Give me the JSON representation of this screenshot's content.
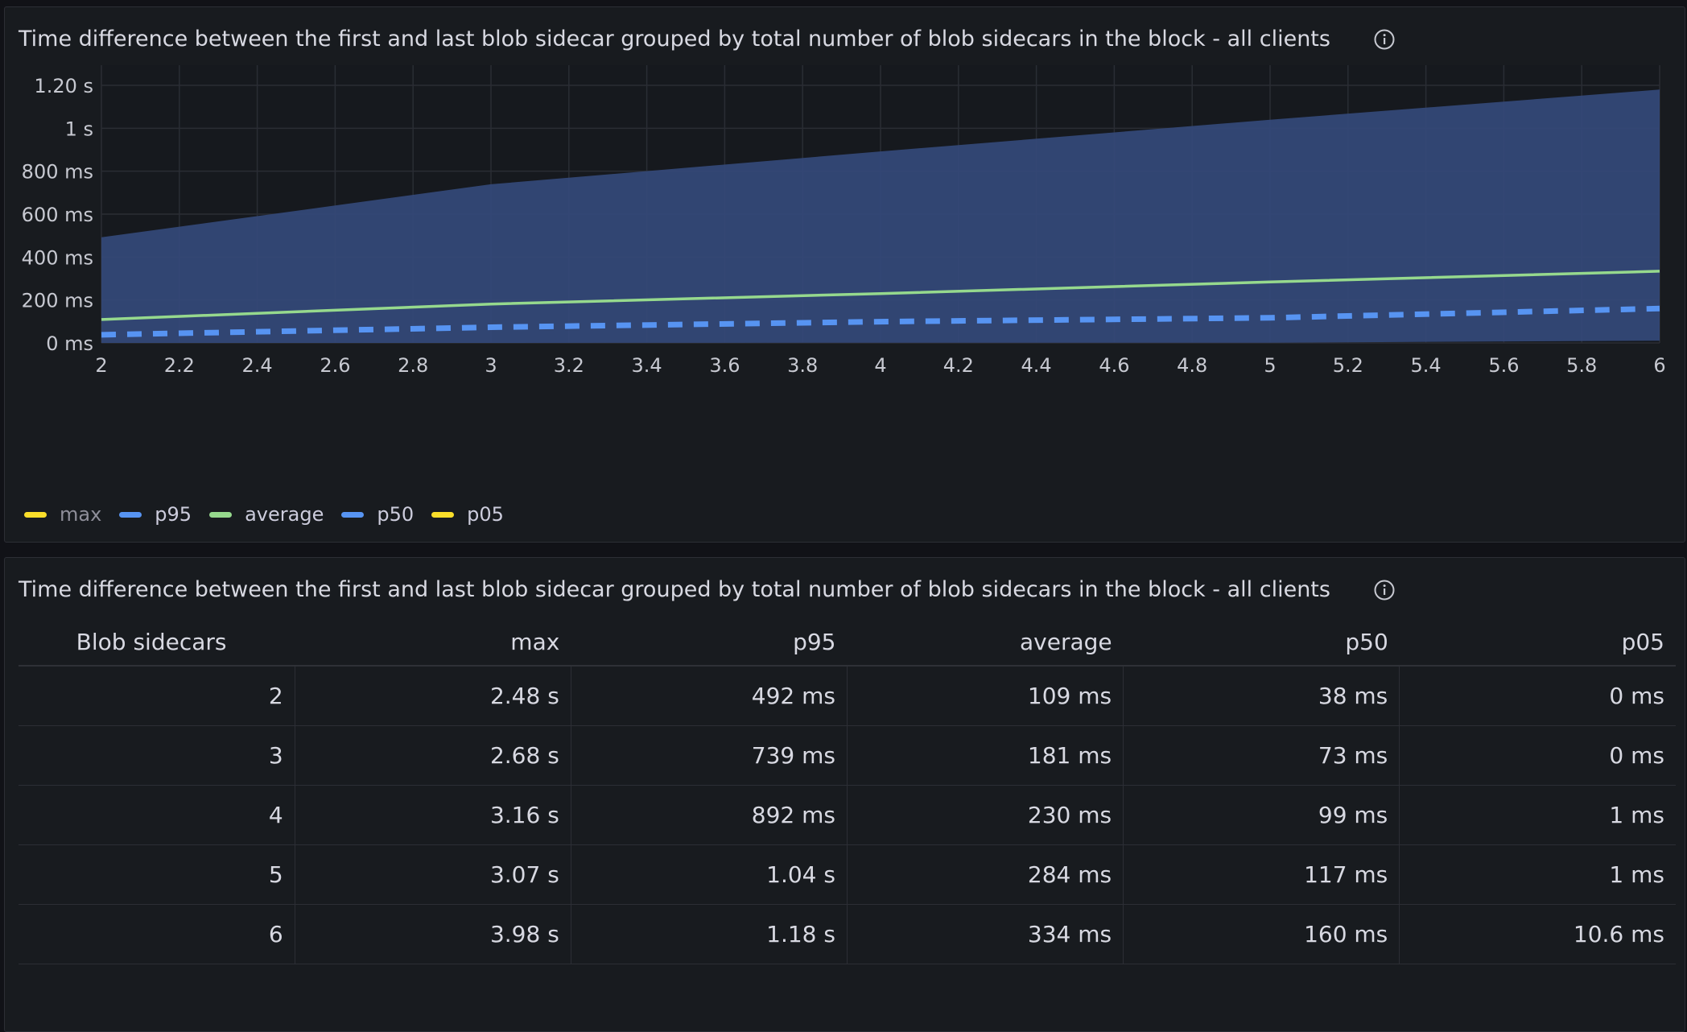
{
  "top_panel": {
    "title": "Time difference between the first and last blob sidecar grouped by total number of blob sidecars in the block - all clients"
  },
  "bottom_panel": {
    "title": "Time difference between the first and last blob sidecar grouped by total number of blob sidecars in the block - all clients"
  },
  "chart_data": {
    "type": "area",
    "x_ticks": [
      "2",
      "2.2",
      "2.4",
      "2.6",
      "2.8",
      "3",
      "3.2",
      "3.4",
      "3.6",
      "3.8",
      "4",
      "4.2",
      "4.4",
      "4.6",
      "4.8",
      "5",
      "5.2",
      "5.4",
      "5.6",
      "5.8",
      "6"
    ],
    "y_ticks": [
      "0 ms",
      "200 ms",
      "400 ms",
      "600 ms",
      "800 ms",
      "1 s",
      "1.20 s"
    ],
    "xlim": [
      2,
      6
    ],
    "ylim_ms": [
      0,
      1300
    ],
    "grid": true,
    "legend_placement": "bottom-left",
    "x": [
      2,
      3,
      4,
      5,
      6
    ],
    "series": [
      {
        "name": "max",
        "values_ms": [
          2480,
          2680,
          3160,
          3070,
          3980
        ],
        "color": "#fade2a",
        "hidden": true
      },
      {
        "name": "p95",
        "values_ms": [
          492,
          739,
          892,
          1040,
          1180
        ],
        "color": "#5794f2",
        "style": "fill-to-p05"
      },
      {
        "name": "average",
        "values_ms": [
          109,
          181,
          230,
          284,
          334
        ],
        "color": "#96d98d",
        "style": "line"
      },
      {
        "name": "p50",
        "values_ms": [
          38,
          73,
          99,
          117,
          160
        ],
        "color": "#5794f2",
        "style": "dashed"
      },
      {
        "name": "p05",
        "values_ms": [
          0,
          0,
          1,
          1,
          10.6
        ],
        "color": "#fade2a",
        "style": "fill-boundary"
      }
    ],
    "fill_color": "#34497a"
  },
  "table": {
    "headers": [
      "Blob sidecars",
      "max",
      "p95",
      "average",
      "p50",
      "p05"
    ],
    "rows": [
      [
        "2",
        "2.48 s",
        "492 ms",
        "109 ms",
        "38 ms",
        "0 ms"
      ],
      [
        "3",
        "2.68 s",
        "739 ms",
        "181 ms",
        "73 ms",
        "0 ms"
      ],
      [
        "4",
        "3.16 s",
        "892 ms",
        "230 ms",
        "99 ms",
        "1 ms"
      ],
      [
        "5",
        "3.07 s",
        "1.04 s",
        "284 ms",
        "117 ms",
        "1 ms"
      ],
      [
        "6",
        "3.98 s",
        "1.18 s",
        "334 ms",
        "160 ms",
        "10.6 ms"
      ]
    ]
  }
}
